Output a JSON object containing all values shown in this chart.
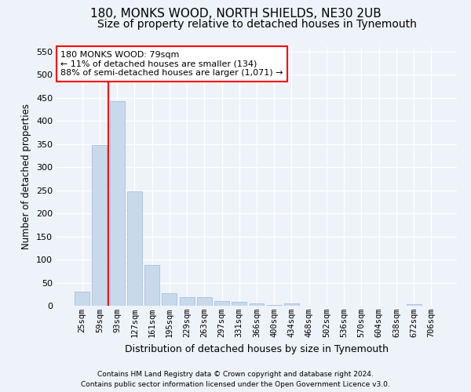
{
  "title1": "180, MONKS WOOD, NORTH SHIELDS, NE30 2UB",
  "title2": "Size of property relative to detached houses in Tynemouth",
  "xlabel": "Distribution of detached houses by size in Tynemouth",
  "ylabel": "Number of detached properties",
  "categories": [
    "25sqm",
    "59sqm",
    "93sqm",
    "127sqm",
    "161sqm",
    "195sqm",
    "229sqm",
    "263sqm",
    "297sqm",
    "331sqm",
    "366sqm",
    "400sqm",
    "434sqm",
    "468sqm",
    "502sqm",
    "536sqm",
    "570sqm",
    "604sqm",
    "638sqm",
    "672sqm",
    "706sqm"
  ],
  "values": [
    30,
    348,
    443,
    248,
    88,
    28,
    18,
    18,
    10,
    8,
    5,
    2,
    5,
    0,
    0,
    0,
    0,
    0,
    0,
    3,
    0
  ],
  "bar_color": "#c9d9ec",
  "bar_edge_color": "#a0b8d8",
  "property_line_color": "red",
  "annotation_text": "180 MONKS WOOD: 79sqm\n← 11% of detached houses are smaller (134)\n88% of semi-detached houses are larger (1,071) →",
  "annotation_box_color": "white",
  "annotation_box_edge_color": "red",
  "ylim": [
    0,
    560
  ],
  "yticks": [
    0,
    50,
    100,
    150,
    200,
    250,
    300,
    350,
    400,
    450,
    500,
    550
  ],
  "footer1": "Contains HM Land Registry data © Crown copyright and database right 2024.",
  "footer2": "Contains public sector information licensed under the Open Government Licence v3.0.",
  "background_color": "#eef2f9",
  "grid_color": "white",
  "title_fontsize": 11,
  "subtitle_fontsize": 10,
  "bar_width": 0.85
}
